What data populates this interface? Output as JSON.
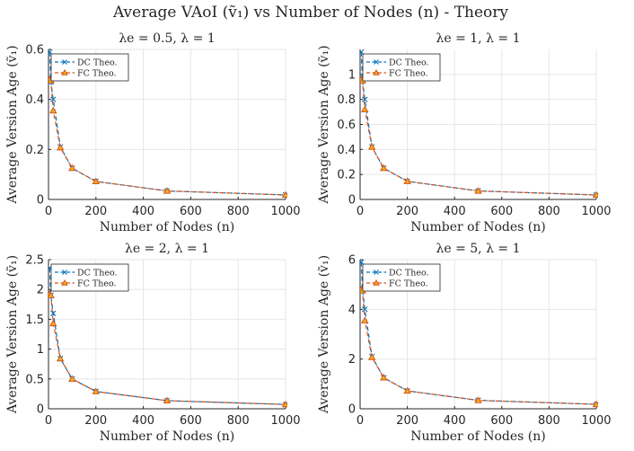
{
  "figure_title": "Average VAoI (ṽ₁) vs Number of Nodes (n) - Theory",
  "colors": {
    "dc": "#0072BD",
    "fc": "#D95319",
    "fc_fill": "#EDB120",
    "axis": "#262626",
    "grid": "#e6e6e6"
  },
  "chart_data": [
    {
      "type": "line",
      "title": "λe = 0.5, λ = 1",
      "xlabel": "Number of Nodes (n)",
      "ylabel": "Average Version Age (ṽ₁)",
      "xlim": [
        0,
        1000
      ],
      "ylim": [
        0,
        0.6
      ],
      "xticks": [
        0,
        200,
        400,
        600,
        800,
        1000
      ],
      "yticks": [
        0,
        0.2,
        0.4,
        0.6
      ],
      "ytick_labels": [
        "0",
        "0.2",
        "0.4",
        "0.6"
      ],
      "grid": true,
      "legend_position": "top-left",
      "x": [
        5,
        10,
        20,
        50,
        100,
        200,
        500,
        1000
      ],
      "series": [
        {
          "name": "DC Theo.",
          "marker": "x",
          "values": [
            0.59,
            0.47,
            0.4,
            0.21,
            0.125,
            0.072,
            0.034,
            0.018
          ]
        },
        {
          "name": "FC Theo.",
          "marker": "triangle",
          "values": [
            0.48,
            0.475,
            0.355,
            0.207,
            0.125,
            0.072,
            0.034,
            0.018
          ]
        }
      ]
    },
    {
      "type": "line",
      "title": "λe = 1, λ = 1",
      "xlabel": "Number of Nodes (n)",
      "ylabel": "Average Version Age (ṽ₁)",
      "xlim": [
        0,
        1000
      ],
      "ylim": [
        0,
        1.2
      ],
      "xticks": [
        0,
        200,
        400,
        600,
        800,
        1000
      ],
      "yticks": [
        0,
        0.2,
        0.4,
        0.6,
        0.8,
        1
      ],
      "ytick_labels": [
        "0",
        "0.2",
        "0.4",
        "0.6",
        "0.8",
        "1"
      ],
      "grid": true,
      "legend_position": "top-left",
      "x": [
        5,
        10,
        20,
        50,
        100,
        200,
        500,
        1000
      ],
      "series": [
        {
          "name": "DC Theo.",
          "marker": "x",
          "values": [
            1.18,
            0.95,
            0.8,
            0.42,
            0.25,
            0.145,
            0.068,
            0.036
          ]
        },
        {
          "name": "FC Theo.",
          "marker": "triangle",
          "values": [
            0.96,
            0.95,
            0.72,
            0.42,
            0.25,
            0.145,
            0.068,
            0.036
          ]
        }
      ]
    },
    {
      "type": "line",
      "title": "λe = 2, λ = 1",
      "xlabel": "Number of Nodes (n)",
      "ylabel": "Average Version Age (ṽ₁)",
      "xlim": [
        0,
        1000
      ],
      "ylim": [
        0,
        2.5
      ],
      "xticks": [
        0,
        200,
        400,
        600,
        800,
        1000
      ],
      "yticks": [
        0,
        0.5,
        1,
        1.5,
        2,
        2.5
      ],
      "ytick_labels": [
        "0",
        "0.5",
        "1",
        "1.5",
        "2",
        "2.5"
      ],
      "grid": true,
      "legend_position": "top-left",
      "x": [
        5,
        10,
        20,
        50,
        100,
        200,
        500,
        1000
      ],
      "series": [
        {
          "name": "DC Theo.",
          "marker": "x",
          "values": [
            2.36,
            1.9,
            1.6,
            0.84,
            0.5,
            0.29,
            0.136,
            0.072
          ]
        },
        {
          "name": "FC Theo.",
          "marker": "triangle",
          "values": [
            1.92,
            1.9,
            1.43,
            0.84,
            0.5,
            0.29,
            0.136,
            0.072
          ]
        }
      ]
    },
    {
      "type": "line",
      "title": "λe = 5, λ = 1",
      "xlabel": "Number of Nodes (n)",
      "ylabel": "Average Version Age (ṽ₁)",
      "xlim": [
        0,
        1000
      ],
      "ylim": [
        0,
        6
      ],
      "xticks": [
        0,
        200,
        400,
        600,
        800,
        1000
      ],
      "yticks": [
        0,
        2,
        4,
        6
      ],
      "ytick_labels": [
        "0",
        "2",
        "4",
        "6"
      ],
      "grid": true,
      "legend_position": "top-left",
      "x": [
        5,
        10,
        20,
        50,
        100,
        200,
        500,
        1000
      ],
      "series": [
        {
          "name": "DC Theo.",
          "marker": "x",
          "values": [
            5.9,
            4.8,
            4.0,
            2.1,
            1.25,
            0.72,
            0.34,
            0.18
          ]
        },
        {
          "name": "FC Theo.",
          "marker": "triangle",
          "values": [
            4.8,
            4.75,
            3.55,
            2.07,
            1.25,
            0.72,
            0.34,
            0.18
          ]
        }
      ]
    }
  ]
}
